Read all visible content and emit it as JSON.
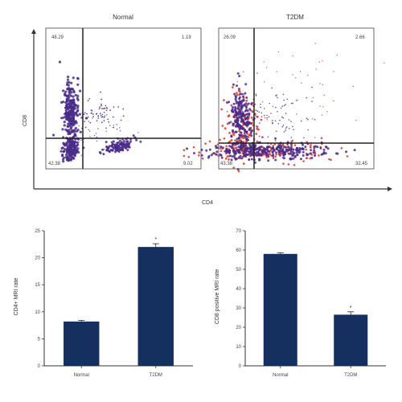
{
  "colors": {
    "bar": "#14305e",
    "dot": "#4a2c8a",
    "dot_alt": "#d63a2a",
    "axis": "#333333"
  },
  "flow": {
    "x_label": "CD4",
    "y_label": "CD8",
    "panels": [
      {
        "title": "Normal",
        "q_tl": "48.29",
        "q_tr": "1.19",
        "q_bl": "42.38",
        "q_br": "9.02"
      },
      {
        "title": "T2DM",
        "q_tl": "26.09",
        "q_tr": "2.66",
        "q_bl": "43.38",
        "q_br": "32.45"
      }
    ]
  },
  "chart_data": [
    {
      "type": "bar",
      "categories": [
        "Normal",
        "T2DM"
      ],
      "values": [
        8.2,
        22.0
      ],
      "errors": [
        0.2,
        0.6
      ],
      "ylabel": "CD4+ MRI rate",
      "ylim": [
        0,
        25
      ],
      "yticks": [
        0,
        5,
        10,
        15,
        20,
        25
      ],
      "annotations": [
        "",
        "*"
      ]
    },
    {
      "type": "bar",
      "categories": [
        "Normal",
        "T2DM"
      ],
      "values": [
        58.0,
        26.5
      ],
      "errors": [
        0.6,
        1.5
      ],
      "ylabel": "CD8 positive MRI rate",
      "ylim": [
        0,
        70
      ],
      "yticks": [
        0,
        10,
        20,
        30,
        40,
        50,
        60,
        70
      ],
      "annotations": [
        "",
        "*"
      ]
    }
  ]
}
